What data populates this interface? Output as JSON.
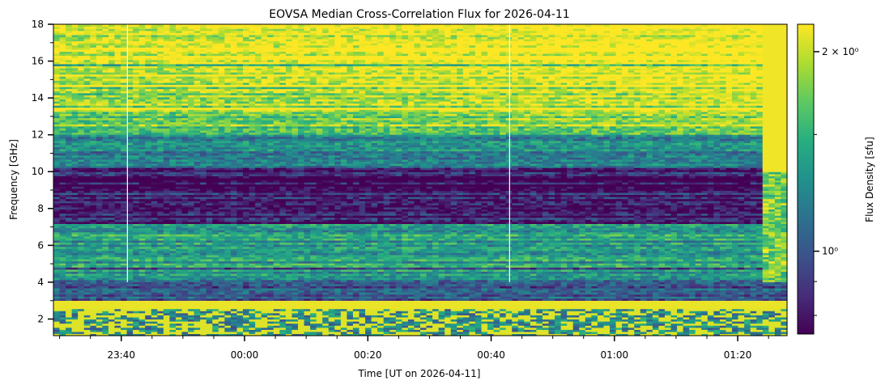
{
  "chart_data": {
    "type": "heatmap",
    "title": "EOVSA Median Cross-Correlation Flux for 2026-04-11",
    "xlabel": "Time [UT on 2026-04-11]",
    "ylabel": "Frequency [GHz]",
    "colorbar_label": "Flux Density [sfu]",
    "colormap": "viridis",
    "colormap_stops": [
      "#440154",
      "#472d7b",
      "#3b528b",
      "#2c728e",
      "#21918c",
      "#28ae80",
      "#5ec962",
      "#addc30",
      "#fde725"
    ],
    "x_range": [
      "23:29",
      "01:28"
    ],
    "y_range": [
      1.1,
      18.0
    ],
    "x_ticks": [
      "23:40",
      "00:00",
      "00:20",
      "00:40",
      "01:00",
      "01:20"
    ],
    "y_ticks": [
      "2",
      "4",
      "6",
      "8",
      "10",
      "12",
      "14",
      "16",
      "18"
    ],
    "colorbar_scale": "log",
    "colorbar_range": [
      0.75,
      2.2
    ],
    "colorbar_ticks": [
      {
        "value": 2.0,
        "label": "2 × 10⁰"
      },
      {
        "value": 1.0,
        "label": "10⁰"
      }
    ],
    "grid": false,
    "gaps_utc": [
      "23:41",
      "00:43"
    ],
    "hot_band_ghz": [
      2.55,
      3.05
    ],
    "lower_band_ghz": [
      1.1,
      2.55
    ],
    "fill_fraction_of_flux_range": {
      "top_band_15_18_GHz": 0.92,
      "band_12_15_GHz": 0.72,
      "band_10_12_GHz": 0.45,
      "band_7_10_GHz": 0.08,
      "band_4_7_GHz": 0.55,
      "band_3_4_GHz": 0.3
    }
  }
}
